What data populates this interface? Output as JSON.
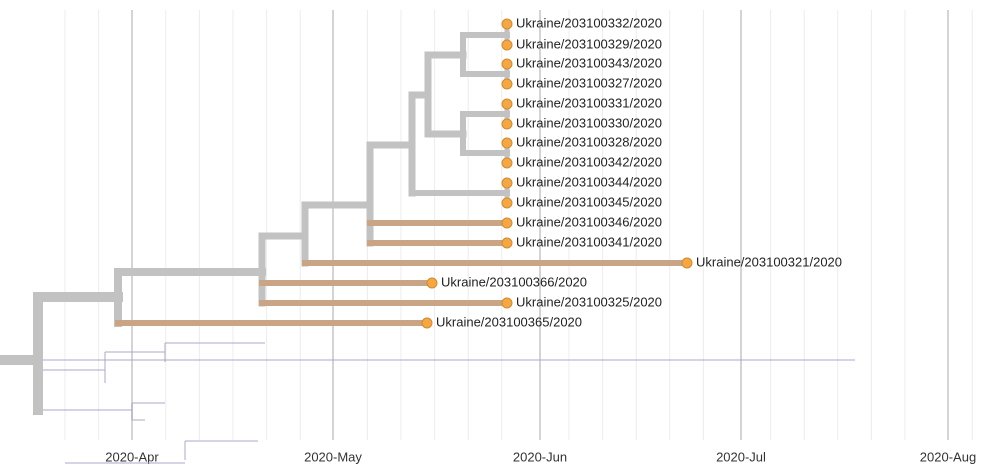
{
  "axis": {
    "ticks": [
      "2020-Apr",
      "2020-May",
      "2020-Jun",
      "2020-Jul",
      "2020-Aug"
    ]
  },
  "tips": [
    "Ukraine/203100332/2020",
    "Ukraine/203100329/2020",
    "Ukraine/203100343/2020",
    "Ukraine/203100327/2020",
    "Ukraine/203100331/2020",
    "Ukraine/203100330/2020",
    "Ukraine/203100328/2020",
    "Ukraine/203100342/2020",
    "Ukraine/203100344/2020",
    "Ukraine/203100345/2020",
    "Ukraine/203100346/2020",
    "Ukraine/203100341/2020",
    "Ukraine/203100321/2020",
    "Ukraine/203100366/2020",
    "Ukraine/203100325/2020",
    "Ukraine/203100365/2020"
  ]
}
